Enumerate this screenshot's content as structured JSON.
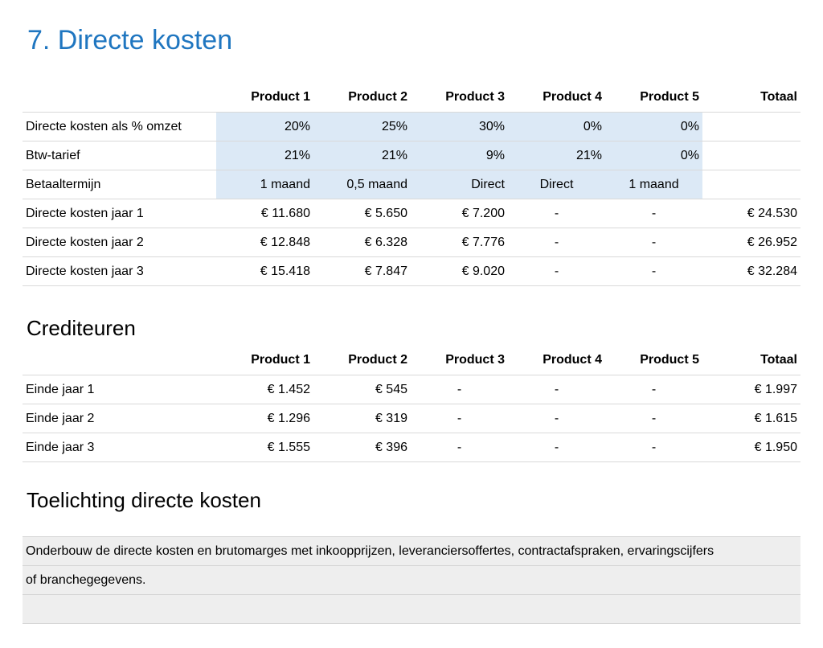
{
  "page": {
    "title": "7. Directe kosten"
  },
  "direct_costs": {
    "headers": [
      "",
      "Product 1",
      "Product 2",
      "Product 3",
      "Product 4",
      "Product 5",
      "Totaal"
    ],
    "rows": [
      {
        "label": "Directe kosten als % omzet",
        "values": [
          "20%",
          "25%",
          "30%",
          "0%",
          "0%",
          ""
        ]
      },
      {
        "label": "Btw-tarief",
        "values": [
          "21%",
          "21%",
          "9%",
          "21%",
          "0%",
          ""
        ]
      },
      {
        "label": "Betaaltermijn",
        "values": [
          "1 maand",
          "0,5 maand",
          "Direct",
          "Direct",
          "1 maand",
          ""
        ]
      },
      {
        "label": "Directe kosten jaar 1",
        "values": [
          "€ 11.680",
          "€ 5.650",
          "€ 7.200",
          "-",
          "-",
          "€ 24.530"
        ]
      },
      {
        "label": "Directe kosten jaar 2",
        "values": [
          "€ 12.848",
          "€ 6.328",
          "€ 7.776",
          "-",
          "-",
          "€ 26.952"
        ]
      },
      {
        "label": "Directe kosten jaar 3",
        "values": [
          "€ 15.418",
          "€ 7.847",
          "€ 9.020",
          "-",
          "-",
          "€ 32.284"
        ]
      }
    ]
  },
  "creditors": {
    "title": "Crediteuren",
    "headers": [
      "",
      "Product 1",
      "Product 2",
      "Product 3",
      "Product 4",
      "Product 5",
      "Totaal"
    ],
    "rows": [
      {
        "label": "Einde jaar 1",
        "values": [
          "€ 1.452",
          "€ 545",
          "-",
          "-",
          "-",
          "€ 1.997"
        ]
      },
      {
        "label": "Einde jaar 2",
        "values": [
          "€ 1.296",
          "€ 319",
          "-",
          "-",
          "-",
          "€ 1.615"
        ]
      },
      {
        "label": "Einde jaar 3",
        "values": [
          "€ 1.555",
          "€ 396",
          "-",
          "-",
          "-",
          "€ 1.950"
        ]
      }
    ]
  },
  "explanation": {
    "title": "Toelichting directe kosten",
    "lines": [
      "Onderbouw de directe kosten en brutomarges met inkoopprijzen, leveranciersoffertes, contractafspraken, ervaringscijfers",
      "of branchegegevens.",
      ""
    ]
  },
  "colors": {
    "title_blue": "#1f76c0",
    "input_cell_bg": "#dce9f6",
    "note_bg": "#eeeeee"
  }
}
